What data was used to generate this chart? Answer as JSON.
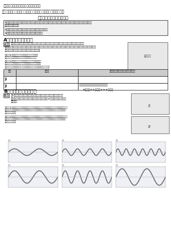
{
  "title_unit": "単元　「音のまわりの現象」（音の世界）",
  "title_exp": "４｜実験「音の大小や高低と物体の振動との関係を調べよう」",
  "subtitle": "得意になるためのポイント",
  "point_lines": [
    "①音は物体が振動することで起こり、音が周りの人に伝わるためには空気などの伝わる物体の必要があるということを",
    "実験で確認しよう。",
    "②音の大小や高低を決めていることを実験で確認しよう。",
    "③音の大小や高低と振動数との関係をまとめよう。"
  ],
  "section_a": "A　基礎力中心の問題",
  "a1_text": [
    "図のように、おんさを使って右減ノードの振動はどういった条件によって変わるかを調べるために、",
    "「弦の振動する部分の長さ」、「弦の張り方の強さ」、「弦の太さ」のそれぞれの条件を変化させていろいろと調べ、高低を",
    "比較したい。モノコードを使って実験している。"
  ],
  "a1_fig1": "図1　実験で、モノコードの「弦の振り方の強さ」を変える方法を簡単に説明しなさい。",
  "a1_fig2": "図2　実験で、変化させる必要のない条件はどれか。次のア〜ウから一つ選び、部分で答えなさい。",
  "a1_abc": "ア　弦の振動する部分の長さ　イ　弦の張り方の強さ　ウ　弦の太さ",
  "table_headers": [
    "問題",
    "解答欄",
    "問題が解けないときに確認すること"
  ],
  "table_rows": [
    [
      "図1",
      "",
      ""
    ],
    [
      "図2",
      "",
      "弦の振動と音の大小や高低について調べおう。"
    ]
  ],
  "section_b": "B　高校入試中心の問題",
  "b_difficulty": "★桨準　★★普通　★★★難しい",
  "b1_text": [
    "図1のように、水を入れたビーカーを木業でたたいた。そのときの音を",
    "マイクを通してオシロスコープで調べたところ、図2のような波の形になっ",
    "た。設問"
  ],
  "b1_q1": "問1　ビーカーの水の量はそのままで、ビーカーを強くたたいたとする。オシロスコープに表される音の波形はどのようになるか。最も適当なものをア〜ウから一つ選び、記号で答えなさい。",
  "b1_q2": "問2　ビーカーの水を減らして、同じ強さでビーカーをたたいたとする。オシロスコープに表される音の波形はどのようになるか。最も適当なものをア〜カから一つ選び、記号で答えなさい。",
  "wave_labels_top": [
    "ア",
    "イ",
    "ウ"
  ],
  "wave_labels_bottom": [
    "エ",
    "オ",
    "カ"
  ],
  "bg_color": "#ffffff",
  "text_color": "#222222",
  "border_color": "#555555"
}
